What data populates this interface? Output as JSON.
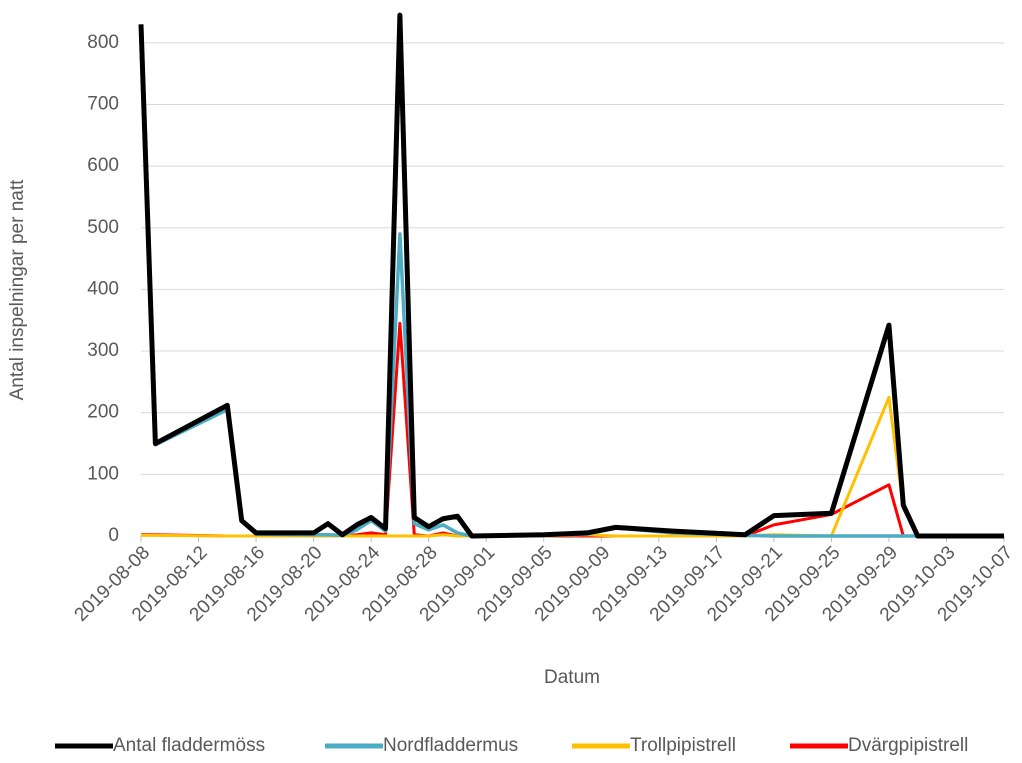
{
  "chart_data": {
    "type": "line",
    "y_label": "Antal inspelningar per natt",
    "x_label": "Datum",
    "x": [
      "2019-08-08",
      "2019-08-09",
      "2019-08-14",
      "2019-08-15",
      "2019-08-16",
      "2019-08-20",
      "2019-08-21",
      "2019-08-22",
      "2019-08-23",
      "2019-08-24",
      "2019-08-25",
      "2019-08-26",
      "2019-08-27",
      "2019-08-28",
      "2019-08-29",
      "2019-08-30",
      "2019-08-31",
      "2019-09-05",
      "2019-09-08",
      "2019-09-10",
      "2019-09-14",
      "2019-09-19",
      "2019-09-21",
      "2019-09-25",
      "2019-09-29",
      "2019-09-30",
      "2019-10-01",
      "2019-10-07"
    ],
    "series": [
      {
        "name": "Antal fladdermöss",
        "color": "#000000",
        "width": 5,
        "values": [
          830,
          150,
          212,
          25,
          5,
          5,
          20,
          2,
          18,
          30,
          12,
          845,
          30,
          15,
          28,
          32,
          0,
          2,
          5,
          14,
          8,
          2,
          33,
          37,
          342,
          50,
          0,
          0
        ]
      },
      {
        "name": "Nordfladdermus",
        "color": "#4bacc6",
        "width": 3.5,
        "values": [
          820,
          148,
          205,
          25,
          3,
          2,
          2,
          1,
          10,
          25,
          8,
          490,
          20,
          10,
          18,
          5,
          0,
          1,
          3,
          13,
          5,
          1,
          0,
          0,
          0,
          0,
          0,
          0
        ]
      },
      {
        "name": "Trollpipistrell",
        "color": "#ffc000",
        "width": 3,
        "values": [
          1,
          1,
          0,
          0,
          0,
          0,
          0,
          0,
          0,
          0,
          0,
          0,
          0,
          0,
          2,
          0,
          0,
          0,
          2,
          0,
          0,
          0,
          2,
          0,
          225,
          45,
          0,
          0
        ]
      },
      {
        "name": "Dvärgpipistrell",
        "color": "#ff0000",
        "width": 3,
        "values": [
          2,
          2,
          0,
          0,
          0,
          0,
          0,
          0,
          2,
          5,
          2,
          345,
          2,
          0,
          5,
          0,
          0,
          0,
          0,
          0,
          0,
          0,
          18,
          35,
          83,
          0,
          0,
          0
        ]
      }
    ],
    "xlim": [
      "2019-08-08",
      "2019-10-07"
    ],
    "xticks": [
      "2019-08-08",
      "2019-08-12",
      "2019-08-16",
      "2019-08-20",
      "2019-08-24",
      "2019-08-28",
      "2019-09-01",
      "2019-09-05",
      "2019-09-09",
      "2019-09-13",
      "2019-09-17",
      "2019-09-21",
      "2019-09-25",
      "2019-09-29",
      "2019-10-03",
      "2019-10-07"
    ],
    "ylim": [
      0,
      850
    ],
    "yticks": [
      0,
      100,
      200,
      300,
      400,
      500,
      600,
      700,
      800
    ],
    "grid": true,
    "legend": "bottom"
  }
}
